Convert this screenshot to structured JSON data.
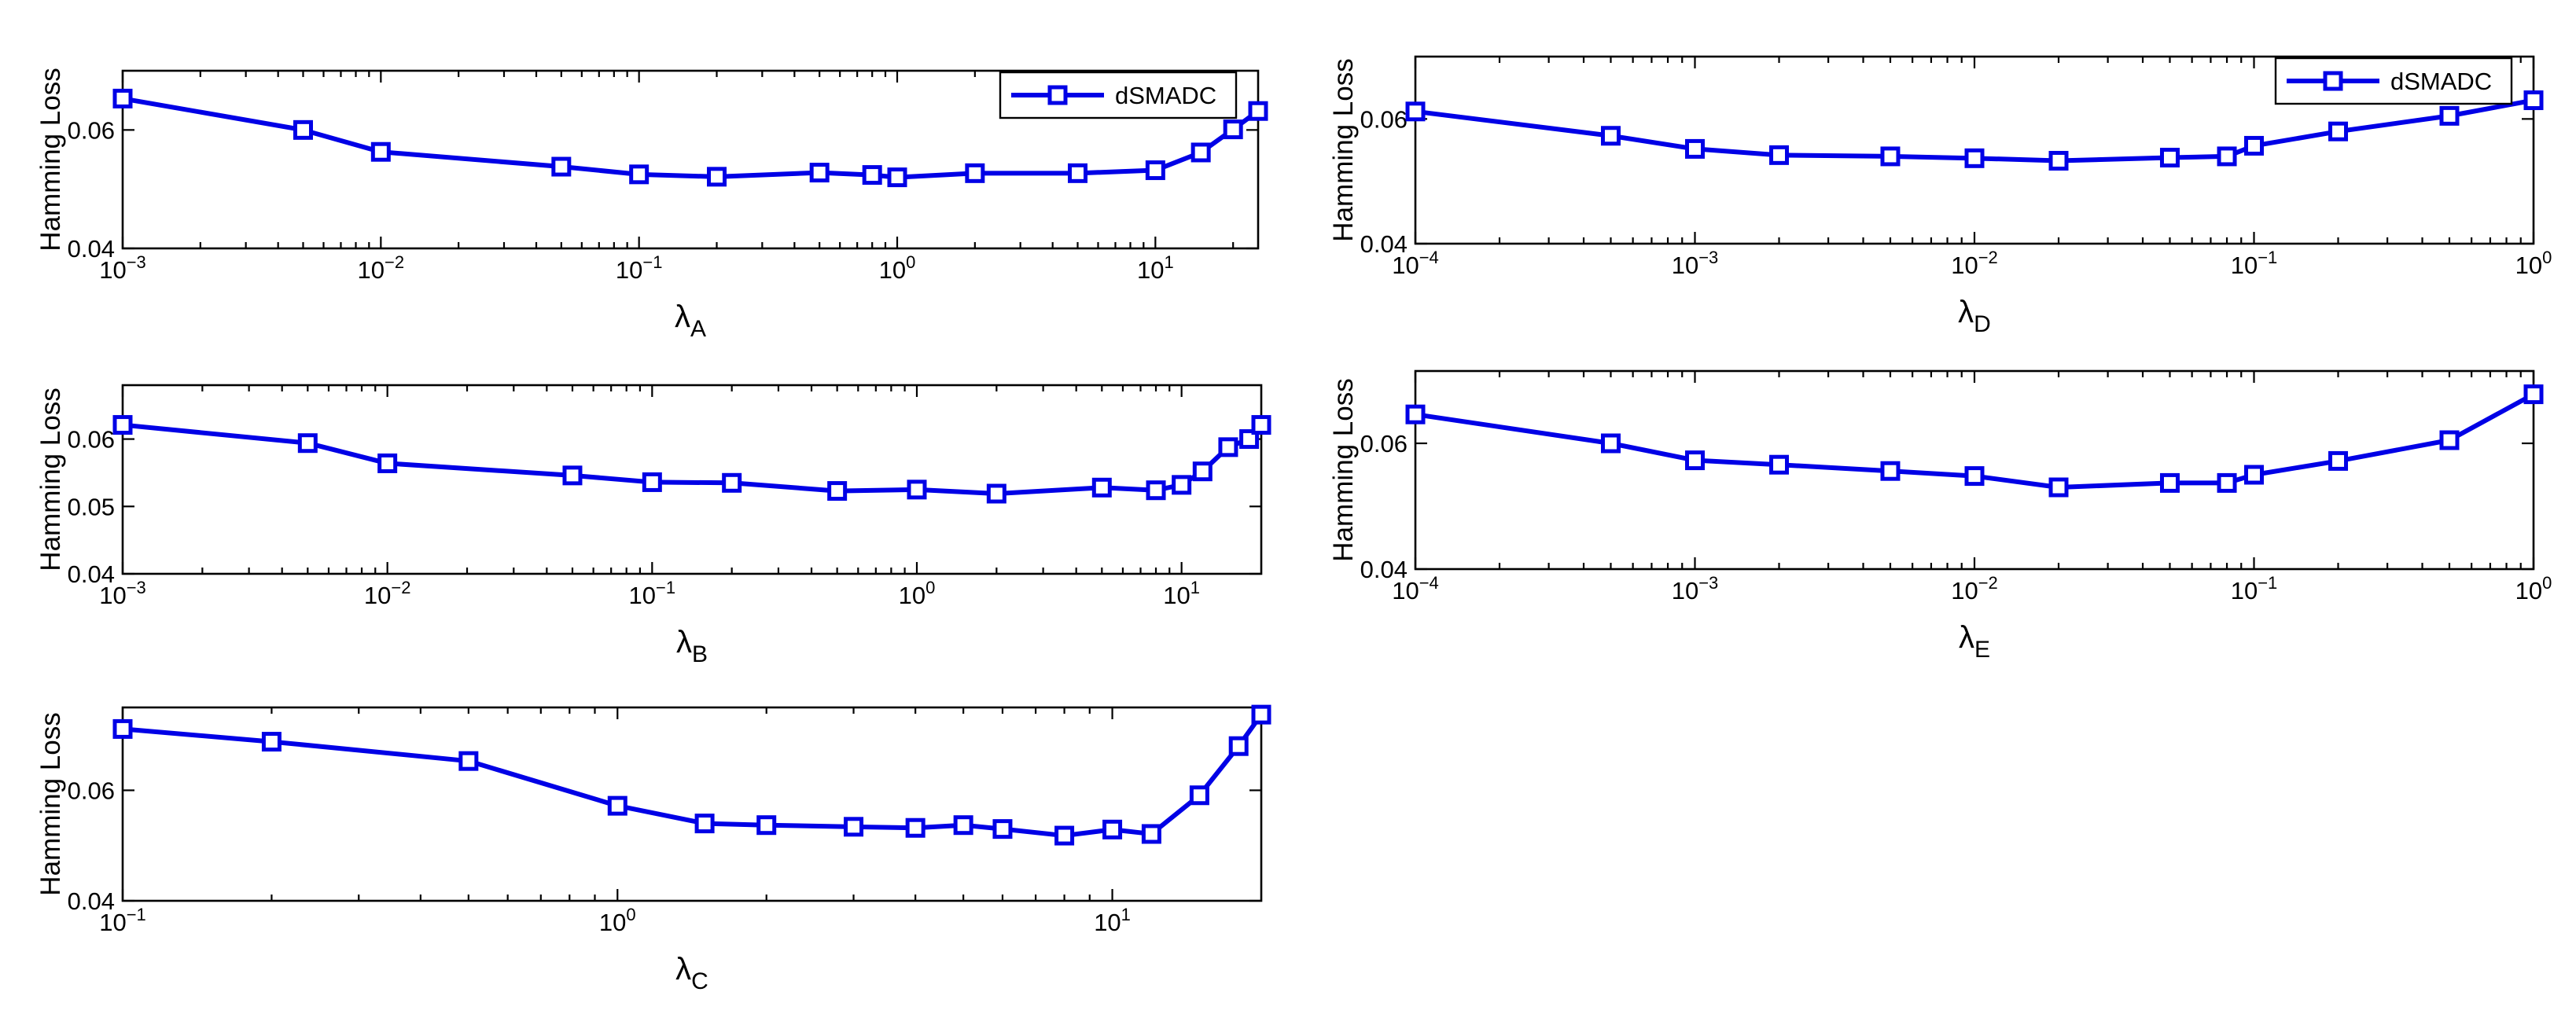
{
  "chart_data": [
    {
      "id": "A",
      "type": "line",
      "xscale": "log",
      "xlim": [
        0.001,
        25
      ],
      "ylim": [
        0.04,
        0.07
      ],
      "xticks": [
        0.001,
        0.01,
        0.1,
        1,
        10
      ],
      "xtick_labels": [
        {
          "base": "10",
          "exp": "−3"
        },
        {
          "base": "10",
          "exp": "−2"
        },
        {
          "base": "10",
          "exp": "−1"
        },
        {
          "base": "10",
          "exp": "0"
        },
        {
          "base": "10",
          "exp": "1"
        }
      ],
      "yticks": [
        0.04,
        0.06
      ],
      "ytick_labels": [
        "0.04",
        "0.06"
      ],
      "ylabel": "Hamming Loss",
      "xlabel": {
        "main": "λ",
        "sub": "A"
      },
      "legend": {
        "show": true,
        "position": "top-right"
      },
      "series": [
        {
          "name": "dSMADC",
          "color": "#0000e6",
          "x": [
            0.001,
            0.005,
            0.01,
            0.05,
            0.1,
            0.2,
            0.5,
            0.8,
            1,
            2,
            5,
            10,
            15,
            20,
            25
          ],
          "y": [
            0.0653,
            0.06,
            0.0563,
            0.0538,
            0.0525,
            0.0521,
            0.0528,
            0.0524,
            0.052,
            0.0527,
            0.0527,
            0.0532,
            0.0562,
            0.0601,
            0.0632
          ]
        }
      ]
    },
    {
      "id": "D",
      "type": "line",
      "xscale": "log",
      "xlim": [
        0.0001,
        1
      ],
      "ylim": [
        0.04,
        0.07
      ],
      "xticks": [
        0.0001,
        0.001,
        0.01,
        0.1,
        1
      ],
      "xtick_labels": [
        {
          "base": "10",
          "exp": "−4"
        },
        {
          "base": "10",
          "exp": "−3"
        },
        {
          "base": "10",
          "exp": "−2"
        },
        {
          "base": "10",
          "exp": "−1"
        },
        {
          "base": "10",
          "exp": "0"
        }
      ],
      "yticks": [
        0.04,
        0.06
      ],
      "ytick_labels": [
        "0.04",
        "0.06"
      ],
      "ylabel": "Hamming Loss",
      "xlabel": {
        "main": "λ",
        "sub": "D"
      },
      "legend": {
        "show": true,
        "position": "top-right"
      },
      "series": [
        {
          "name": "dSMADC",
          "color": "#0000e6",
          "x": [
            0.0001,
            0.0005,
            0.001,
            0.002,
            0.005,
            0.01,
            0.02,
            0.05,
            0.08,
            0.1,
            0.2,
            0.5,
            1
          ],
          "y": [
            0.0612,
            0.0573,
            0.0552,
            0.0542,
            0.054,
            0.0537,
            0.0533,
            0.0538,
            0.054,
            0.0557,
            0.058,
            0.0605,
            0.063
          ]
        }
      ]
    },
    {
      "id": "B",
      "type": "line",
      "xscale": "log",
      "xlim": [
        0.001,
        20
      ],
      "ylim": [
        0.04,
        0.068
      ],
      "xticks": [
        0.001,
        0.01,
        0.1,
        1,
        10
      ],
      "xtick_labels": [
        {
          "base": "10",
          "exp": "−3"
        },
        {
          "base": "10",
          "exp": "−2"
        },
        {
          "base": "10",
          "exp": "−1"
        },
        {
          "base": "10",
          "exp": "0"
        },
        {
          "base": "10",
          "exp": "1"
        }
      ],
      "yticks": [
        0.04,
        0.05,
        0.06
      ],
      "ytick_labels": [
        "0.04",
        "0.05",
        "0.06"
      ],
      "ylabel": "Hamming Loss",
      "xlabel": {
        "main": "λ",
        "sub": "B"
      },
      "legend": {
        "show": false
      },
      "series": [
        {
          "name": "dSMADC",
          "color": "#0000e6",
          "x": [
            0.001,
            0.005,
            0.01,
            0.05,
            0.1,
            0.2,
            0.5,
            1,
            2,
            5,
            8,
            10,
            12,
            15,
            18,
            20
          ],
          "y": [
            0.0621,
            0.0594,
            0.0564,
            0.0546,
            0.0536,
            0.0535,
            0.0523,
            0.0525,
            0.0519,
            0.0528,
            0.0524,
            0.0532,
            0.0552,
            0.0588,
            0.06,
            0.0621
          ]
        }
      ]
    },
    {
      "id": "E",
      "type": "line",
      "xscale": "log",
      "xlim": [
        0.0001,
        1
      ],
      "ylim": [
        0.04,
        0.0715
      ],
      "xticks": [
        0.0001,
        0.001,
        0.01,
        0.1,
        1
      ],
      "xtick_labels": [
        {
          "base": "10",
          "exp": "−4"
        },
        {
          "base": "10",
          "exp": "−3"
        },
        {
          "base": "10",
          "exp": "−2"
        },
        {
          "base": "10",
          "exp": "−1"
        },
        {
          "base": "10",
          "exp": "0"
        }
      ],
      "yticks": [
        0.04,
        0.06
      ],
      "ytick_labels": [
        "0.04",
        "0.06"
      ],
      "ylabel": "Hamming Loss",
      "xlabel": {
        "main": "λ",
        "sub": "E"
      },
      "legend": {
        "show": false
      },
      "series": [
        {
          "name": "dSMADC",
          "color": "#0000e6",
          "x": [
            0.0001,
            0.0005,
            0.001,
            0.002,
            0.005,
            0.01,
            0.02,
            0.05,
            0.08,
            0.1,
            0.2,
            0.5,
            1
          ],
          "y": [
            0.0646,
            0.06,
            0.0573,
            0.0566,
            0.0556,
            0.0548,
            0.053,
            0.0537,
            0.0537,
            0.055,
            0.0572,
            0.0605,
            0.0678
          ]
        }
      ]
    },
    {
      "id": "C",
      "type": "line",
      "xscale": "log",
      "xlim": [
        0.1,
        20
      ],
      "ylim": [
        0.04,
        0.075
      ],
      "xticks": [
        0.1,
        1,
        10
      ],
      "xtick_labels": [
        {
          "base": "10",
          "exp": "−1"
        },
        {
          "base": "10",
          "exp": "0"
        },
        {
          "base": "10",
          "exp": "1"
        }
      ],
      "yticks": [
        0.04,
        0.06
      ],
      "ytick_labels": [
        "0.04",
        "0.06"
      ],
      "ylabel": "Hamming Loss",
      "xlabel": {
        "main": "λ",
        "sub": "C"
      },
      "legend": {
        "show": false
      },
      "series": [
        {
          "name": "dSMADC",
          "color": "#0000e6",
          "x": [
            0.1,
            0.2,
            0.5,
            1,
            1.5,
            2,
            3,
            4,
            5,
            6,
            8,
            10,
            12,
            15,
            18,
            20
          ],
          "y": [
            0.0711,
            0.0688,
            0.0653,
            0.0572,
            0.054,
            0.0537,
            0.0534,
            0.0532,
            0.0537,
            0.053,
            0.0518,
            0.0529,
            0.0521,
            0.0591,
            0.068,
            0.0737
          ]
        }
      ]
    }
  ]
}
